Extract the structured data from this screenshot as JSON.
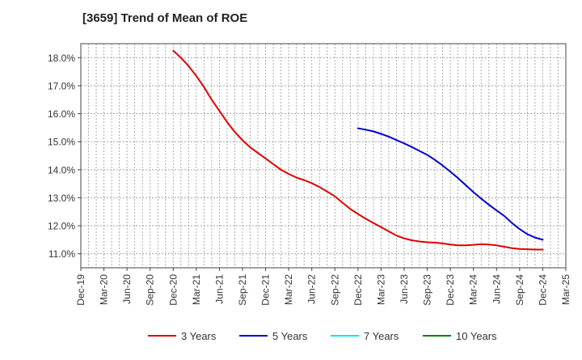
{
  "chart_data": {
    "type": "line",
    "title": "[3659]  Trend of Mean of ROE",
    "xlabel": "",
    "ylabel": "",
    "x_ticks": [
      "Dec-19",
      "Mar-20",
      "Jun-20",
      "Sep-20",
      "Dec-20",
      "Mar-21",
      "Jun-21",
      "Sep-21",
      "Dec-21",
      "Mar-22",
      "Jun-22",
      "Sep-22",
      "Dec-22",
      "Mar-23",
      "Jun-23",
      "Sep-23",
      "Dec-23",
      "Mar-24",
      "Jun-24",
      "Sep-24",
      "Dec-24",
      "Mar-25"
    ],
    "y_ticks": [
      "11.0%",
      "12.0%",
      "13.0%",
      "14.0%",
      "15.0%",
      "16.0%",
      "17.0%",
      "18.0%"
    ],
    "ylim": [
      10.5,
      18.5
    ],
    "grid": true,
    "legend_position": "bottom",
    "series": [
      {
        "name": "3 Years",
        "color": "#e00000",
        "x": [
          "Dec-20",
          "Jan-21",
          "Feb-21",
          "Mar-21",
          "Apr-21",
          "May-21",
          "Jun-21",
          "Jul-21",
          "Aug-21",
          "Sep-21",
          "Oct-21",
          "Nov-21",
          "Dec-21",
          "Jan-22",
          "Feb-22",
          "Mar-22",
          "Apr-22",
          "May-22",
          "Jun-22",
          "Jul-22",
          "Aug-22",
          "Sep-22",
          "Oct-22",
          "Nov-22",
          "Dec-22",
          "Jan-23",
          "Feb-23",
          "Mar-23",
          "Apr-23",
          "May-23",
          "Jun-23",
          "Jul-23",
          "Aug-23",
          "Sep-23",
          "Oct-23",
          "Nov-23",
          "Dec-23",
          "Jan-24",
          "Feb-24",
          "Mar-24",
          "Apr-24",
          "May-24",
          "Jun-24",
          "Jul-24",
          "Aug-24",
          "Sep-24",
          "Oct-24",
          "Nov-24",
          "Dec-24"
        ],
        "values": [
          18.25,
          18.0,
          17.7,
          17.35,
          16.95,
          16.5,
          16.1,
          15.7,
          15.35,
          15.05,
          14.8,
          14.6,
          14.4,
          14.2,
          14.0,
          13.85,
          13.72,
          13.63,
          13.52,
          13.38,
          13.22,
          13.05,
          12.82,
          12.6,
          12.42,
          12.25,
          12.1,
          11.95,
          11.8,
          11.65,
          11.55,
          11.48,
          11.44,
          11.41,
          11.4,
          11.37,
          11.33,
          11.3,
          11.3,
          11.32,
          11.34,
          11.33,
          11.3,
          11.25,
          11.2,
          11.17,
          11.16,
          11.15,
          11.15
        ]
      },
      {
        "name": "5 Years",
        "color": "#0000cc",
        "x": [
          "Dec-22",
          "Jan-23",
          "Feb-23",
          "Mar-23",
          "Apr-23",
          "May-23",
          "Jun-23",
          "Jul-23",
          "Aug-23",
          "Sep-23",
          "Oct-23",
          "Nov-23",
          "Dec-23",
          "Jan-24",
          "Feb-24",
          "Mar-24",
          "Apr-24",
          "May-24",
          "Jun-24",
          "Jul-24",
          "Aug-24",
          "Sep-24",
          "Oct-24",
          "Nov-24",
          "Dec-24"
        ],
        "values": [
          15.48,
          15.43,
          15.37,
          15.28,
          15.18,
          15.06,
          14.94,
          14.81,
          14.67,
          14.53,
          14.35,
          14.15,
          13.93,
          13.7,
          13.45,
          13.2,
          12.97,
          12.75,
          12.55,
          12.35,
          12.1,
          11.88,
          11.7,
          11.58,
          11.5
        ]
      },
      {
        "name": "7 Years",
        "color": "#00e5ee",
        "x": [],
        "values": []
      },
      {
        "name": "10 Years",
        "color": "#008000",
        "x": [],
        "values": []
      }
    ]
  }
}
